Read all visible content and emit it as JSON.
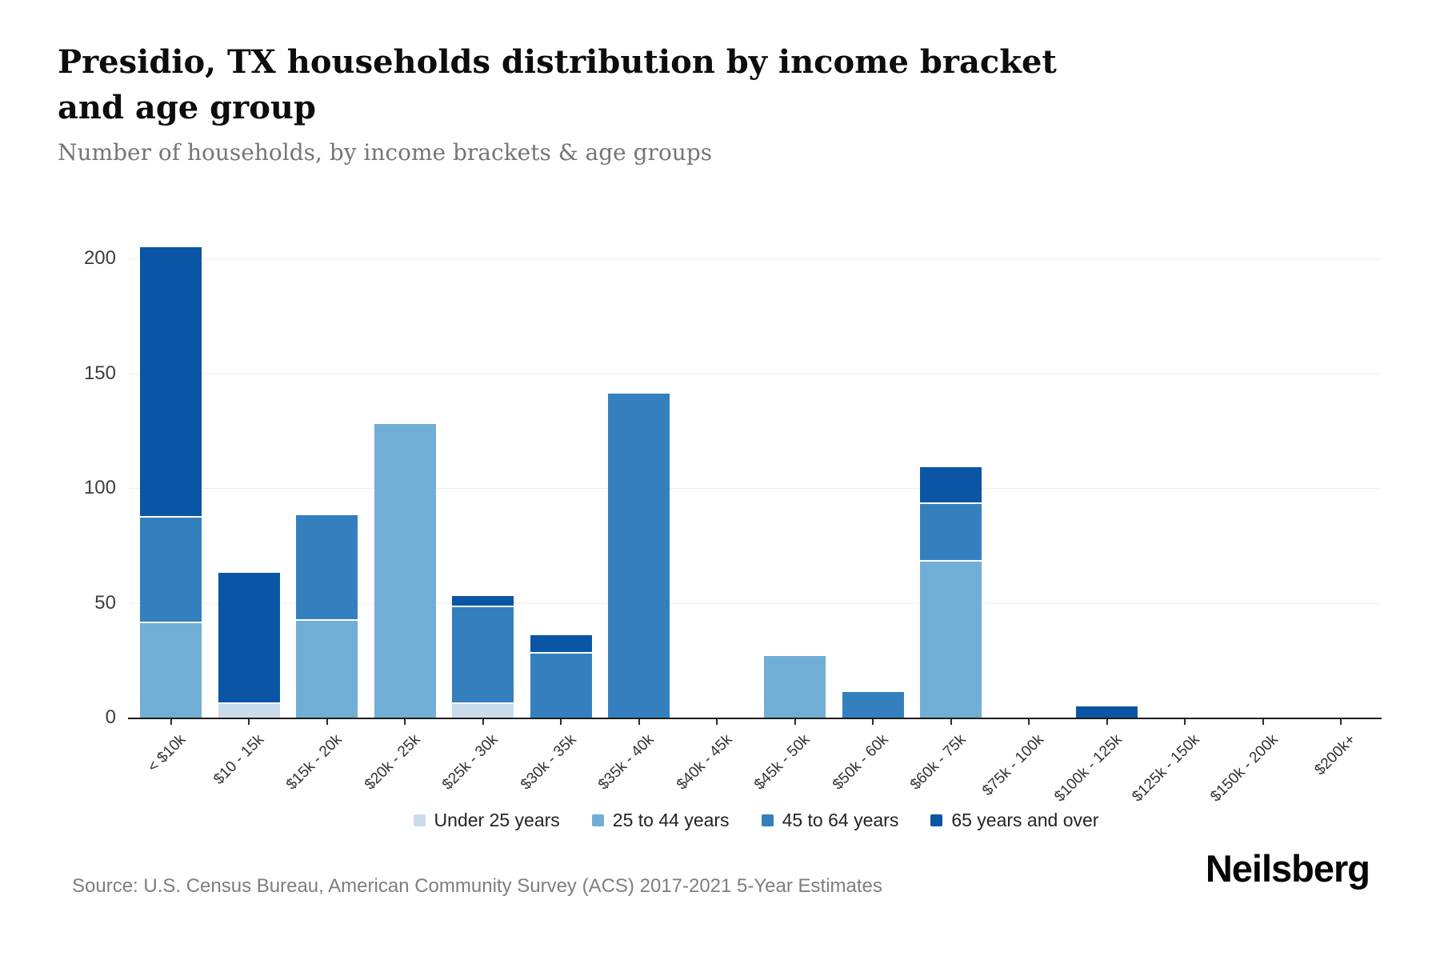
{
  "header": {
    "title": "Presidio, TX households distribution by income bracket and age group",
    "subtitle": "Number of households, by income brackets & age groups"
  },
  "chart_data": {
    "type": "bar",
    "stacked": true,
    "title": "Presidio, TX households distribution by income bracket and age group",
    "subtitle": "Number of households, by income brackets & age groups",
    "xlabel": "",
    "ylabel": "",
    "ylim": [
      0,
      225
    ],
    "yticks": [
      0,
      50,
      100,
      150,
      200
    ],
    "grid": "horizontal",
    "legend_position": "bottom",
    "categories": [
      "< $10k",
      "$10 - 15k",
      "$15k - 20k",
      "$20k - 25k",
      "$25k - 30k",
      "$30k - 35k",
      "$35k - 40k",
      "$40k - 45k",
      "$45k - 50k",
      "$50k - 60k",
      "$60k - 75k",
      "$75k - 100k",
      "$100k - 125k",
      "$125k - 150k",
      "$150k - 200k",
      "$200k+"
    ],
    "series": [
      {
        "name": "Under 25 years",
        "color": "#cadcec",
        "values": [
          0,
          6,
          0,
          0,
          6,
          0,
          0,
          0,
          0,
          0,
          0,
          0,
          0,
          0,
          0,
          0
        ]
      },
      {
        "name": "25 to 44 years",
        "color": "#71aed6",
        "values": [
          41,
          0,
          42,
          128,
          0,
          0,
          0,
          0,
          27,
          0,
          68,
          0,
          0,
          0,
          0,
          0
        ]
      },
      {
        "name": "45 to 64 years",
        "color": "#3480bf",
        "values": [
          46,
          0,
          46,
          0,
          42,
          28,
          141,
          0,
          0,
          11,
          25,
          0,
          0,
          0,
          0,
          0
        ]
      },
      {
        "name": "65 years and over",
        "color": "#0b56a4",
        "values": [
          118,
          57,
          0,
          0,
          5,
          8,
          0,
          0,
          0,
          0,
          16,
          0,
          5,
          0,
          0,
          0
        ]
      }
    ]
  },
  "footer": {
    "source": "Source: U.S. Census Bureau, American Community Survey (ACS) 2017-2021 5-Year Estimates",
    "brand": "Neilsberg"
  }
}
